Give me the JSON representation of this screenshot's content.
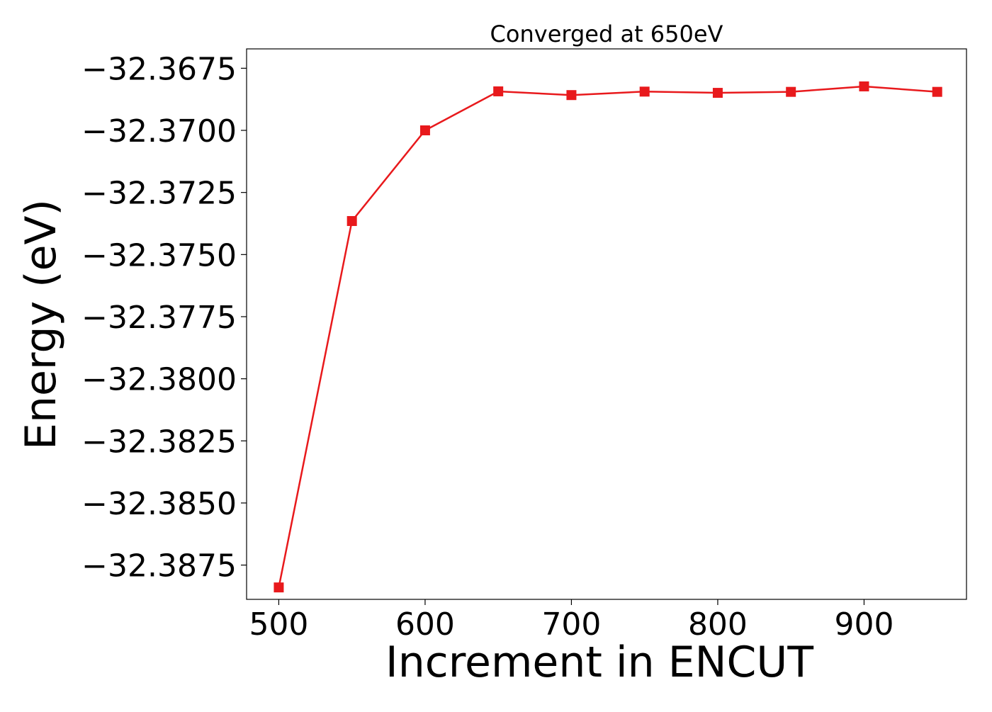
{
  "chart_data": {
    "type": "line",
    "title": "Converged at 650eV",
    "xlabel": "Increment in ENCUT",
    "ylabel": "Energy (eV)",
    "xlim": [
      478,
      970
    ],
    "ylim": [
      -32.38888,
      -32.36672
    ],
    "xticks": [
      500,
      600,
      700,
      800,
      900
    ],
    "xtick_labels": [
      "500",
      "600",
      "700",
      "800",
      "900"
    ],
    "yticks": [
      -32.3675,
      -32.37,
      -32.3725,
      -32.375,
      -32.3775,
      -32.38,
      -32.3825,
      -32.385,
      -32.3875
    ],
    "ytick_labels": [
      "−32.3675",
      "−32.3700",
      "−32.3725",
      "−32.3750",
      "−32.3775",
      "−32.3800",
      "−32.3825",
      "−32.3850",
      "−32.3875"
    ],
    "grid": false,
    "series": [
      {
        "color": "#e8191c",
        "marker": "square",
        "x": [
          500,
          550,
          600,
          650,
          700,
          750,
          800,
          850,
          900,
          950
        ],
        "y": [
          -32.3884,
          -32.37365,
          -32.37,
          -32.36843,
          -32.36858,
          -32.36844,
          -32.36849,
          -32.36845,
          -32.36823,
          -32.36845
        ]
      }
    ]
  }
}
